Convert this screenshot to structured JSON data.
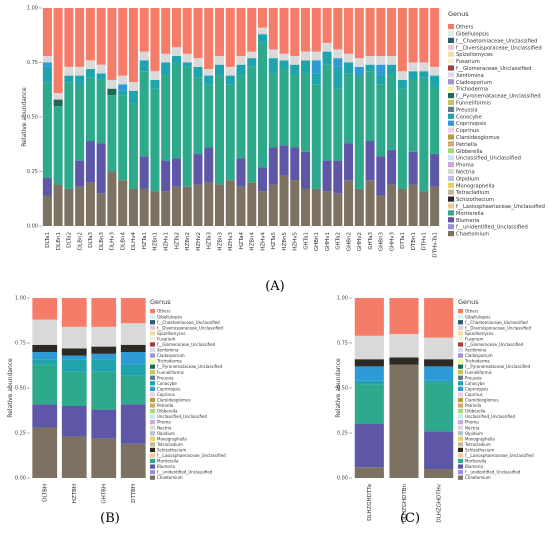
{
  "genera": [
    "Others",
    "Gibellulopsis",
    "f__Chaetomiaceae_Unclassified",
    "f__Diversisporaceae_Unclassified",
    "Spizellomyces",
    "Fusarium",
    "f__Glomeraceae_Unclassified",
    "Xenfomina",
    "Cladosporium",
    "Trichoderma",
    "f__Pyronemataceae_Unclassified",
    "Funneliformis",
    "Preussia",
    "Conocybe",
    "Coprinopsis",
    "Coprinus",
    "Claroideoglomus",
    "Petriella",
    "Gibberella",
    "Unclassified_Unclassified",
    "Phoma",
    "Nectria",
    "Olpidium",
    "Monographella",
    "Tetracladium",
    "Schizothecium",
    "f__Lasiosphaeriaceae_Unclassified",
    "Mortierella",
    "Blumeria",
    "f__unidentified_Unclassified",
    "Chaetomium"
  ],
  "colors": {
    "Others": "#f47c68",
    "Gibellulopsis": "#d7efe6",
    "f__Chaetomiaceae_Unclassified": "#2b5c6e",
    "f__Diversisporaceae_Unclassified": "#eac9d2",
    "Spizellomyces": "#eee0a0",
    "Fusarium": "#f4f1d8",
    "f__Glomeraceae_Unclassified": "#a23f3c",
    "Xenfomina": "#dbdbee",
    "Cladosporium": "#9d93cf",
    "Trichoderma": "#f7f4a8",
    "f__Pyronemataceae_Unclassified": "#1c6b52",
    "Funneliformis": "#c6c45a",
    "Preussia": "#5c7a8c",
    "Conocybe": "#1fa3ad",
    "Coprinopsis": "#2e9bd7",
    "Coprinus": "#e9d2e6",
    "Claroideoglomus": "#b39d3c",
    "Petriella": "#d7a978",
    "Gibberella": "#a9d77e",
    "Unclassified_Unclassified": "#c9e5f0",
    "Phoma": "#cfa9dd",
    "Nectria": "#d9d9d9",
    "Olpidium": "#b9c3d7",
    "Monographella": "#ead25f",
    "Tetracladium": "#c7b89c",
    "Schizothecium": "#2c2a23",
    "f__Lasiosphaeriaceae_Unclassified": "#f2c896",
    "Mortierella": "#2fa98b",
    "Blumeria": "#5e57a7",
    "f__unidentified_Unclassified": "#9a8fd8",
    "Chaetomium": "#7d7262"
  },
  "panel_labels": [
    "(A)",
    "(B)",
    "(C)"
  ],
  "chart_data": [
    {
      "type": "bar",
      "stacked": true,
      "xlabel": "",
      "ylabel": "Relative abundance",
      "ylim": [
        0,
        1
      ],
      "yticks": [
        "0.00",
        "0.25",
        "0.50",
        "0.75",
        "1.00"
      ],
      "legend_title": "Genus",
      "legend_position": "right",
      "categories": [
        "DLTa1",
        "DLBn1",
        "DLTa2",
        "DLBn2",
        "DLTa3",
        "DLBn3",
        "DLHv3",
        "DLBn4",
        "DLHv4",
        "HZTa1",
        "HZBn1",
        "HZHv1",
        "HZTa2",
        "HZBn2",
        "HZHv2",
        "HZTa3",
        "HZBn3",
        "HZHv3",
        "HZTa4",
        "HZBn4",
        "HZHv4",
        "HZTa5",
        "HZBn5",
        "HZHv5",
        "GHTa1",
        "GHBn1",
        "GHHv1",
        "GHTa2",
        "GHBn2",
        "GHHv2",
        "GHTa3",
        "GHBn3",
        "GHHv3",
        "DTTa1",
        "DTBn1",
        "DTHv1",
        "DTHv-Ta1"
      ],
      "stack": [
        "Chaetomium",
        "Blumeria",
        "Mortierella",
        "Conocybe",
        "Coprinopsis",
        "f__Pyronemataceae_Unclassified",
        "Schizothecium",
        "Nectria",
        "Others"
      ],
      "values": [
        [
          0.14,
          0.08,
          0.44,
          0.07,
          0.02,
          0.0,
          0.0,
          0.03,
          0.22
        ],
        [
          0.19,
          0.0,
          0.36,
          0.0,
          0.0,
          0.03,
          0.0,
          0.03,
          0.39
        ],
        [
          0.17,
          0.0,
          0.49,
          0.03,
          0.0,
          0.0,
          0.0,
          0.04,
          0.27
        ],
        [
          0.18,
          0.12,
          0.34,
          0.05,
          0.0,
          0.0,
          0.0,
          0.04,
          0.27
        ],
        [
          0.2,
          0.19,
          0.29,
          0.04,
          0.0,
          0.0,
          0.0,
          0.04,
          0.24
        ],
        [
          0.15,
          0.23,
          0.29,
          0.03,
          0.0,
          0.0,
          0.0,
          0.04,
          0.26
        ],
        [
          0.25,
          0.0,
          0.35,
          0.0,
          0.0,
          0.03,
          0.0,
          0.04,
          0.33
        ],
        [
          0.21,
          0.0,
          0.39,
          0.02,
          0.03,
          0.0,
          0.0,
          0.04,
          0.31
        ],
        [
          0.17,
          0.0,
          0.39,
          0.06,
          0.0,
          0.0,
          0.0,
          0.04,
          0.34
        ],
        [
          0.17,
          0.15,
          0.39,
          0.05,
          0.0,
          0.0,
          0.0,
          0.04,
          0.2
        ],
        [
          0.16,
          0.0,
          0.47,
          0.04,
          0.0,
          0.0,
          0.0,
          0.04,
          0.29
        ],
        [
          0.16,
          0.14,
          0.39,
          0.06,
          0.0,
          0.0,
          0.0,
          0.04,
          0.21
        ],
        [
          0.18,
          0.13,
          0.44,
          0.03,
          0.0,
          0.0,
          0.0,
          0.04,
          0.18
        ],
        [
          0.18,
          0.0,
          0.55,
          0.02,
          0.0,
          0.0,
          0.0,
          0.04,
          0.21
        ],
        [
          0.19,
          0.14,
          0.35,
          0.05,
          0.0,
          0.0,
          0.0,
          0.04,
          0.23
        ],
        [
          0.2,
          0.16,
          0.29,
          0.04,
          0.0,
          0.0,
          0.0,
          0.03,
          0.28
        ],
        [
          0.19,
          0.0,
          0.5,
          0.05,
          0.0,
          0.0,
          0.0,
          0.04,
          0.22
        ],
        [
          0.21,
          0.0,
          0.44,
          0.04,
          0.0,
          0.0,
          0.0,
          0.04,
          0.27
        ],
        [
          0.18,
          0.13,
          0.38,
          0.05,
          0.0,
          0.0,
          0.0,
          0.04,
          0.22
        ],
        [
          0.2,
          0.0,
          0.53,
          0.04,
          0.0,
          0.0,
          0.0,
          0.03,
          0.2
        ],
        [
          0.16,
          0.11,
          0.57,
          0.04,
          0.0,
          0.0,
          0.0,
          0.03,
          0.09
        ],
        [
          0.19,
          0.17,
          0.34,
          0.07,
          0.0,
          0.0,
          0.0,
          0.04,
          0.19
        ],
        [
          0.23,
          0.14,
          0.35,
          0.04,
          0.0,
          0.0,
          0.0,
          0.03,
          0.21
        ],
        [
          0.21,
          0.15,
          0.33,
          0.05,
          0.0,
          0.0,
          0.0,
          0.04,
          0.22
        ],
        [
          0.17,
          0.17,
          0.36,
          0.06,
          0.0,
          0.0,
          0.0,
          0.04,
          0.2
        ],
        [
          0.17,
          0.0,
          0.48,
          0.05,
          0.06,
          0.0,
          0.0,
          0.04,
          0.2
        ],
        [
          0.16,
          0.14,
          0.44,
          0.06,
          0.0,
          0.0,
          0.0,
          0.04,
          0.16
        ],
        [
          0.15,
          0.15,
          0.33,
          0.1,
          0.04,
          0.0,
          0.0,
          0.04,
          0.19
        ],
        [
          0.21,
          0.17,
          0.32,
          0.05,
          0.0,
          0.0,
          0.0,
          0.04,
          0.21
        ],
        [
          0.17,
          0.0,
          0.52,
          0.0,
          0.04,
          0.0,
          0.0,
          0.04,
          0.23
        ],
        [
          0.21,
          0.18,
          0.32,
          0.03,
          0.0,
          0.0,
          0.0,
          0.04,
          0.22
        ],
        [
          0.14,
          0.18,
          0.33,
          0.04,
          0.05,
          0.0,
          0.0,
          0.04,
          0.22
        ],
        [
          0.19,
          0.16,
          0.34,
          0.05,
          0.0,
          0.0,
          0.0,
          0.04,
          0.22
        ],
        [
          0.17,
          0.0,
          0.46,
          0.04,
          0.0,
          0.0,
          0.0,
          0.04,
          0.29
        ],
        [
          0.19,
          0.15,
          0.33,
          0.04,
          0.0,
          0.0,
          0.0,
          0.04,
          0.25
        ],
        [
          0.16,
          0.0,
          0.52,
          0.03,
          0.0,
          0.0,
          0.0,
          0.04,
          0.25
        ],
        [
          0.18,
          0.15,
          0.31,
          0.05,
          0.0,
          0.0,
          0.0,
          0.04,
          0.27
        ]
      ]
    },
    {
      "type": "bar",
      "stacked": true,
      "xlabel": "",
      "ylabel": "Relative abundance",
      "ylim": [
        0,
        1
      ],
      "yticks": [
        "0.00",
        "0.25",
        "0.50",
        "0.75",
        "1.00"
      ],
      "legend_title": "Genus",
      "legend_position": "right",
      "categories": [
        "DLTBH",
        "HZTBH",
        "GHTBH",
        "DTTBH"
      ],
      "stack": [
        "Chaetomium",
        "Blumeria",
        "Mortierella",
        "Conocybe",
        "Coprinopsis",
        "Schizothecium",
        "Nectria",
        "Others"
      ],
      "values": [
        [
          0.28,
          0.13,
          0.22,
          0.03,
          0.04,
          0.04,
          0.14,
          0.12
        ],
        [
          0.23,
          0.17,
          0.19,
          0.07,
          0.02,
          0.04,
          0.12,
          0.16
        ],
        [
          0.22,
          0.16,
          0.21,
          0.07,
          0.03,
          0.04,
          0.11,
          0.16
        ],
        [
          0.19,
          0.22,
          0.16,
          0.06,
          0.07,
          0.04,
          0.12,
          0.14
        ]
      ]
    },
    {
      "type": "bar",
      "stacked": true,
      "xlabel": "",
      "ylabel": "Relative abundance",
      "ylim": [
        0,
        1
      ],
      "yticks": [
        "0.00",
        "0.25",
        "0.50",
        "0.75",
        "1.00"
      ],
      "legend_title": "Genus",
      "legend_position": "right",
      "categories": [
        "DLHZGHDTTa",
        "DLHZGHDTBn",
        "DLHZGHDTHv"
      ],
      "stack": [
        "Chaetomium",
        "Blumeria",
        "Mortierella",
        "Conocybe",
        "Coprinopsis",
        "Schizothecium",
        "Nectria",
        "Others"
      ],
      "values": [
        [
          0.06,
          0.24,
          0.22,
          0.02,
          0.08,
          0.04,
          0.13,
          0.21
        ],
        [
          0.63,
          0.0,
          0.0,
          0.0,
          0.0,
          0.04,
          0.13,
          0.2
        ],
        [
          0.05,
          0.21,
          0.27,
          0.01,
          0.08,
          0.04,
          0.12,
          0.22
        ]
      ]
    }
  ]
}
